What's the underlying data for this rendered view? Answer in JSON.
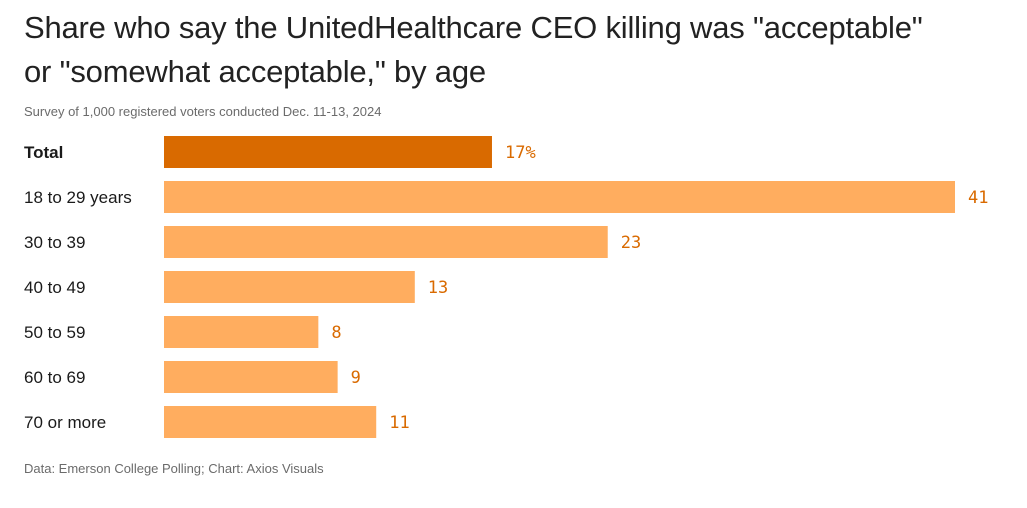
{
  "header": {
    "title_line1": "Share who say the UnitedHealthcare CEO killing was \"acceptable\"",
    "title_line2": "or \"somewhat acceptable,\" by age",
    "subtitle": "Survey of 1,000 registered voters conducted Dec. 11-13, 2024"
  },
  "footer": {
    "source": "Data: Emerson College Polling; Chart: Axios Visuals"
  },
  "colors": {
    "highlight": "#d96a00",
    "bar": "#ffad5f",
    "label": "#d96a00"
  },
  "chart_data": {
    "type": "bar",
    "orientation": "horizontal",
    "categories": [
      "Total",
      "18 to 29 years",
      "30 to 39",
      "40 to 49",
      "50 to 59",
      "60 to 69",
      "70 or more"
    ],
    "values": [
      17,
      41,
      23,
      13,
      8,
      9,
      11
    ],
    "value_labels": [
      "17%",
      "41",
      "23",
      "13",
      "8",
      "9",
      "11"
    ],
    "highlighted_category": "Total",
    "xlim": [
      0,
      41
    ],
    "grid": false
  }
}
